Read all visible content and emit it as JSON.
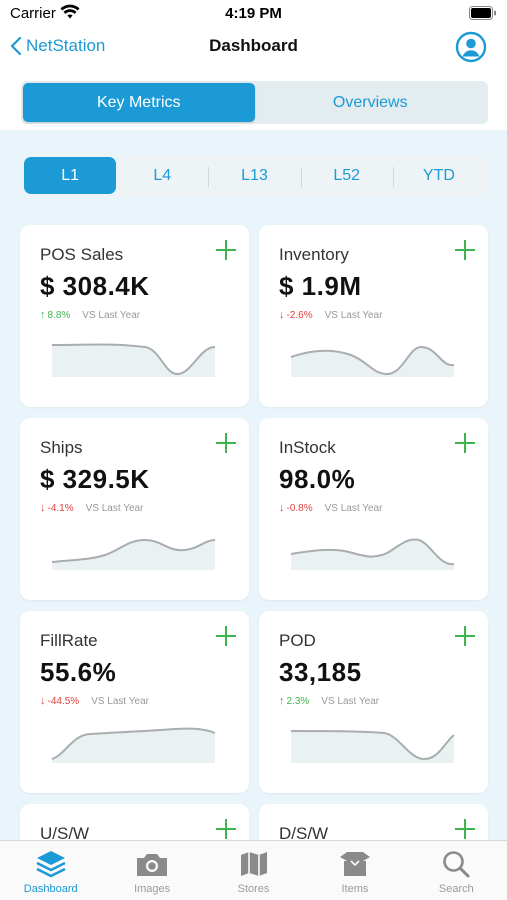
{
  "status_bar": {
    "carrier": "Carrier",
    "time": "4:19 PM"
  },
  "nav": {
    "back_label": "NetStation",
    "title": "Dashboard"
  },
  "segments": {
    "items": [
      "Key Metrics",
      "Overviews"
    ],
    "active": "Key Metrics"
  },
  "periods": {
    "items": [
      "L1",
      "L4",
      "L13",
      "L52",
      "YTD"
    ],
    "active": "L1"
  },
  "metrics": [
    {
      "title": "POS Sales",
      "value": "$ 308.4K",
      "direction": "up",
      "arrow": "↑",
      "delta": "8.8%",
      "comparison": "VS Last Year"
    },
    {
      "title": "Inventory",
      "value": "$ 1.9M",
      "direction": "down",
      "arrow": "↓",
      "delta": "-2.6%",
      "comparison": "VS Last Year"
    },
    {
      "title": "Ships",
      "value": "$ 329.5K",
      "direction": "down",
      "arrow": "↓",
      "delta": "-4.1%",
      "comparison": "VS Last Year"
    },
    {
      "title": "InStock",
      "value": "98.0%",
      "direction": "down",
      "arrow": "↓",
      "delta": "-0.8%",
      "comparison": "VS Last Year"
    },
    {
      "title": "FillRate",
      "value": "55.6%",
      "direction": "down",
      "arrow": "↓",
      "delta": "-44.5%",
      "comparison": "VS Last Year"
    },
    {
      "title": "POD",
      "value": "33,185",
      "direction": "up",
      "arrow": "↑",
      "delta": "2.3%",
      "comparison": "VS Last Year"
    },
    {
      "title": "U/S/W"
    },
    {
      "title": "D/S/W"
    }
  ],
  "tabbar": {
    "items": [
      {
        "label": "Dashboard",
        "icon": "layers-icon"
      },
      {
        "label": "Images",
        "icon": "camera-icon"
      },
      {
        "label": "Stores",
        "icon": "map-icon"
      },
      {
        "label": "Items",
        "icon": "box-icon"
      },
      {
        "label": "Search",
        "icon": "search-icon"
      }
    ],
    "active": "Dashboard"
  },
  "colors": {
    "accent": "#1c9ad6",
    "up": "#3fb34f",
    "down": "#e2413e",
    "plus": "#3fb34f",
    "background": "#e9f5fb"
  }
}
